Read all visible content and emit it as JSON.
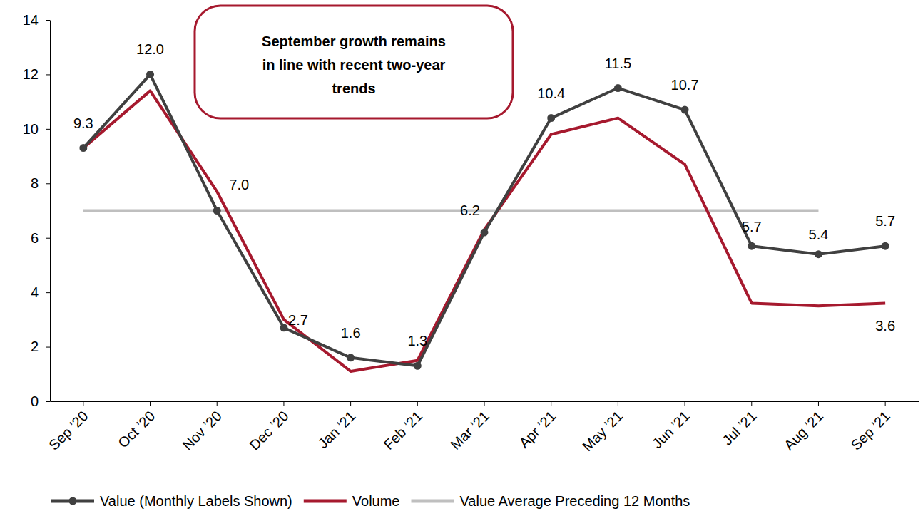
{
  "chart_data": {
    "type": "line",
    "categories": [
      "Sep ’20",
      "Oct ’20",
      "Nov ’20",
      "Dec ’20",
      "Jan ’21",
      "Feb ’21",
      "Mar ’21",
      "Apr ’21",
      "May ’21",
      "Jun ’21",
      "Jul ’21",
      "Aug ’21",
      "Sep ’21"
    ],
    "series": [
      {
        "name": "Value (Monthly Labels Shown)",
        "color": "#404040",
        "marker": "circle",
        "values": [
          9.3,
          12,
          7,
          2.7,
          1.6,
          1.3,
          6.2,
          10.4,
          11.5,
          10.7,
          5.7,
          5.4,
          5.7
        ],
        "value_labels": [
          "9.3",
          "12.0",
          "7.0",
          "2.7",
          "1.6",
          "1.3",
          "6.2",
          "10.4",
          "11.5",
          "10.7",
          "5.7",
          "5.4",
          "5.7"
        ]
      },
      {
        "name": "Volume",
        "color": "#a6192e",
        "values": [
          9.3,
          11.4,
          7.7,
          3.0,
          1.1,
          1.5,
          6.3,
          9.8,
          10.4,
          8.7,
          3.6,
          3.5,
          3.6
        ],
        "value_labels": [
          null,
          null,
          null,
          null,
          null,
          null,
          null,
          null,
          null,
          null,
          null,
          null,
          "3.6"
        ]
      },
      {
        "name": "Value Average Preceding 12 Months",
        "color": "#bfbfbf",
        "values": [
          7,
          7,
          7,
          7,
          7,
          7,
          7,
          7,
          7,
          7,
          7,
          7,
          null
        ]
      }
    ],
    "ylim": [
      0,
      14
    ],
    "yticks": [
      0,
      2,
      4,
      6,
      8,
      10,
      12,
      14
    ],
    "grid": false,
    "legend": "bottom",
    "data_labels": true,
    "annotation": [
      "September growth remains",
      "in line with recent two-year",
      "trends"
    ]
  }
}
